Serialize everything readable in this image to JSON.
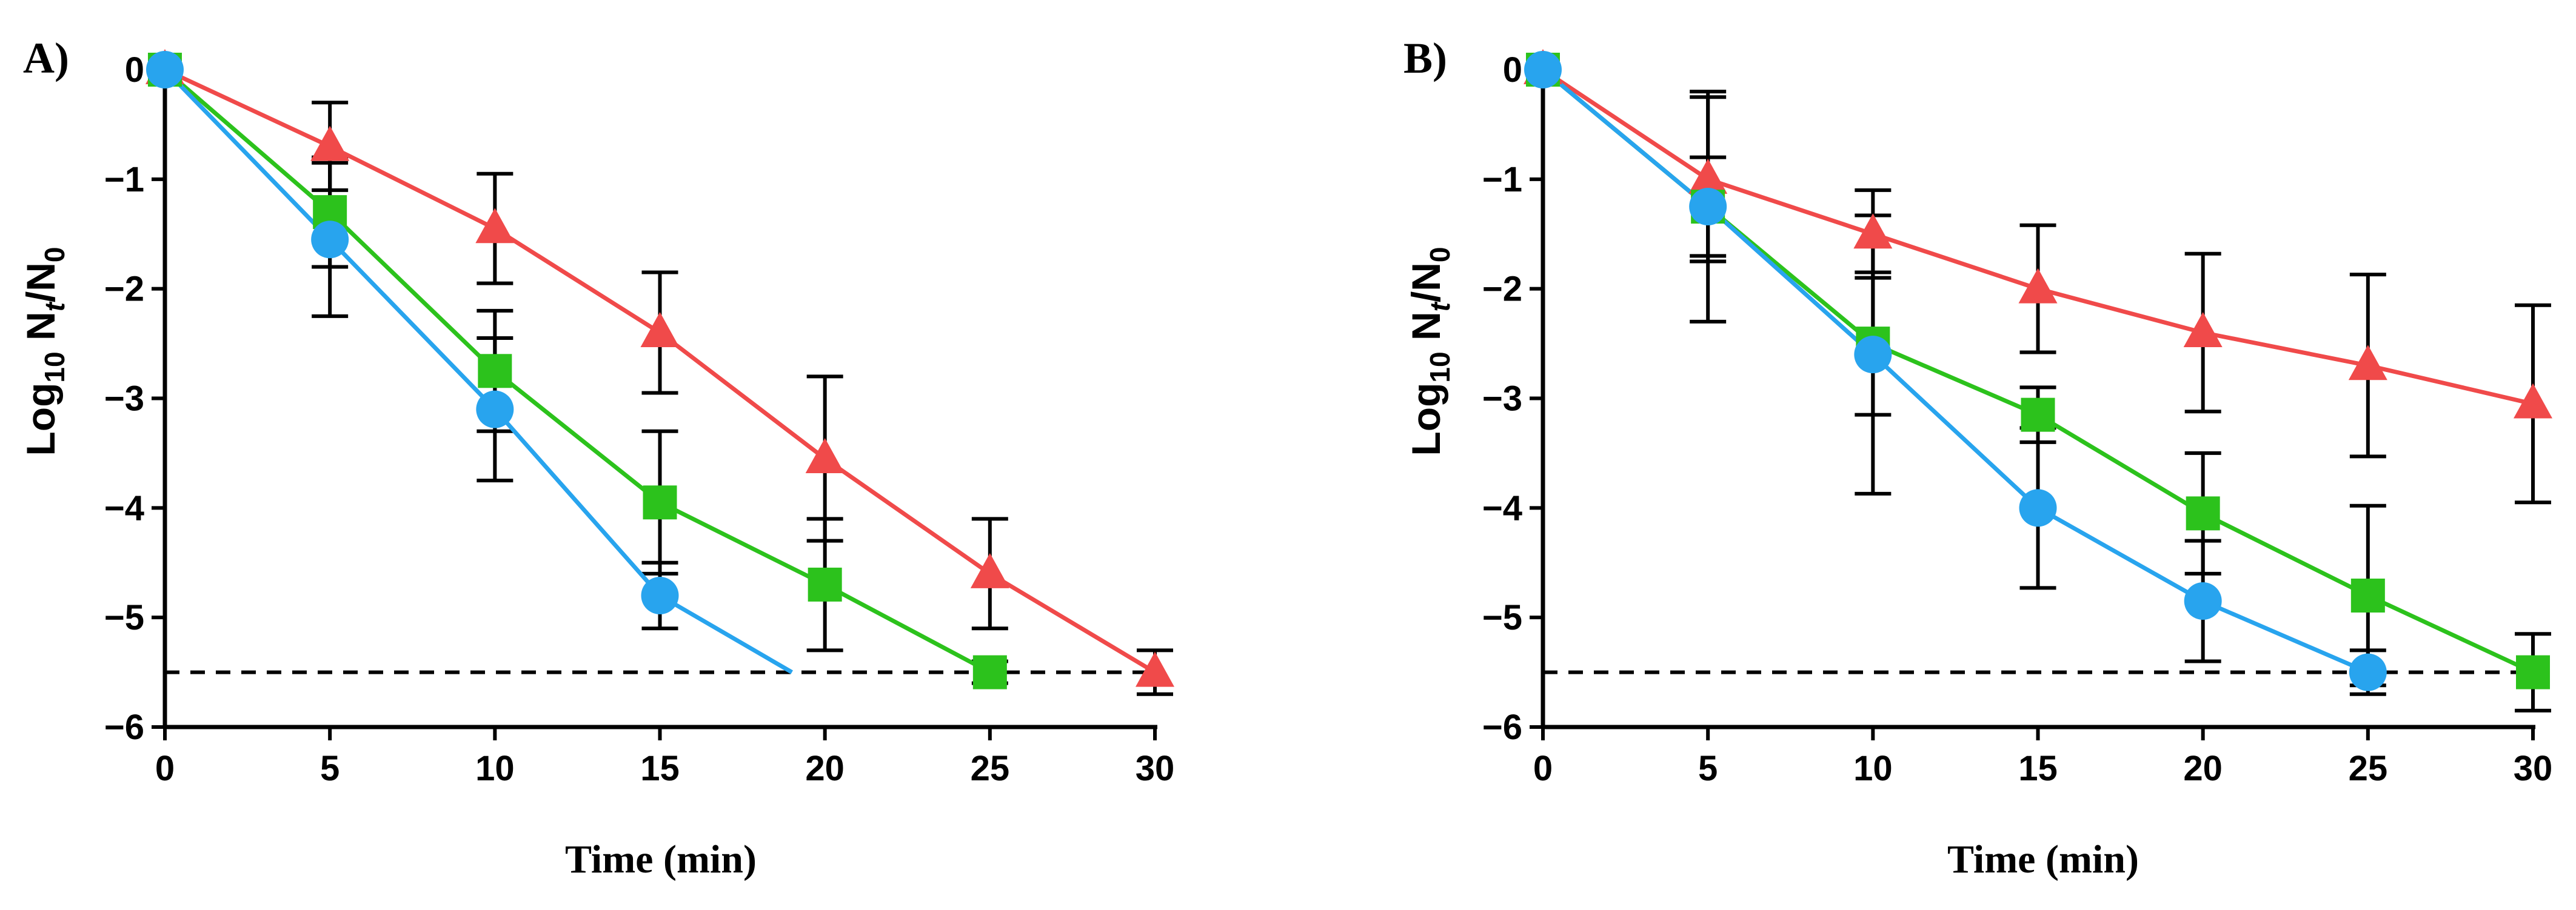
{
  "colors": {
    "red": "#f04a4a",
    "green": "#2cc21c",
    "blue": "#28a4ee",
    "axis": "#000000",
    "errorbar": "#000000"
  },
  "chart_data": [
    {
      "panel": "A)",
      "type": "line",
      "xlabel": "Time (min)",
      "ylabel": "Log10 Nt/N0",
      "ylabel_parts": {
        "main": "Log",
        "sub1": "10",
        "n": " N",
        "sub2": "t",
        "slash": "/N",
        "sub3": "0"
      },
      "xlim": [
        0,
        30
      ],
      "ylim": [
        -6,
        0
      ],
      "xticks": [
        "0",
        "5",
        "10",
        "15",
        "20",
        "25",
        "30"
      ],
      "yticks": [
        "0",
        "−1",
        "−2",
        "−3",
        "−4",
        "−5",
        "−6"
      ],
      "detection_limit": -5.5,
      "series": [
        {
          "name": "triangle",
          "marker": "triangle",
          "color": "red",
          "x": [
            0,
            5,
            10,
            15,
            20,
            25,
            30
          ],
          "y": [
            0,
            -0.7,
            -1.45,
            -2.4,
            -3.55,
            -4.6,
            -5.5
          ],
          "err": [
            0,
            0.4,
            0.5,
            0.55,
            0.75,
            0.5,
            0.2
          ]
        },
        {
          "name": "square",
          "marker": "square",
          "color": "green",
          "x": [
            0,
            5,
            10,
            15,
            20,
            25
          ],
          "y": [
            0,
            -1.3,
            -2.75,
            -3.95,
            -4.7,
            -5.5
          ],
          "err": [
            0,
            0.5,
            0.55,
            0.65,
            0.6,
            0.1
          ]
        },
        {
          "name": "circle",
          "marker": "circle",
          "color": "blue",
          "x": [
            0,
            5,
            10,
            15,
            19
          ],
          "y": [
            0,
            -1.55,
            -3.1,
            -4.8,
            -5.5
          ],
          "err": [
            0,
            0.7,
            0.65,
            0.3,
            0
          ],
          "marker_points": 4
        }
      ]
    },
    {
      "panel": "B)",
      "type": "line",
      "xlabel": "Time (min)",
      "ylabel": "Log10 Nt/N0",
      "ylabel_parts": {
        "main": "Log",
        "sub1": "10",
        "n": " N",
        "sub2": "t",
        "slash": "/N",
        "sub3": "0"
      },
      "xlim": [
        0,
        30
      ],
      "ylim": [
        -6,
        0
      ],
      "xticks": [
        "0",
        "5",
        "10",
        "15",
        "20",
        "25",
        "30"
      ],
      "yticks": [
        "0",
        "−1",
        "−2",
        "−3",
        "−4",
        "−5",
        "−6"
      ],
      "detection_limit": -5.5,
      "series": [
        {
          "name": "triangle",
          "marker": "triangle",
          "color": "red",
          "x": [
            0,
            5,
            10,
            15,
            20,
            25,
            30
          ],
          "y": [
            0,
            -1.0,
            -1.5,
            -2.0,
            -2.4,
            -2.7,
            -3.05
          ],
          "err": [
            0,
            0.75,
            0.4,
            0.58,
            0.72,
            0.83,
            0.9
          ]
        },
        {
          "name": "square",
          "marker": "square",
          "color": "green",
          "x": [
            0,
            5,
            10,
            15,
            20,
            25,
            30
          ],
          "y": [
            0,
            -1.25,
            -2.5,
            -3.15,
            -4.05,
            -4.8,
            -5.5
          ],
          "err": [
            0,
            0.45,
            0.65,
            0.25,
            0.55,
            0.82,
            0.35
          ]
        },
        {
          "name": "circle",
          "marker": "circle",
          "color": "blue",
          "x": [
            0,
            5,
            10,
            15,
            20,
            25
          ],
          "y": [
            0,
            -1.25,
            -2.6,
            -4.0,
            -4.85,
            -5.5
          ],
          "err": [
            0,
            1.05,
            1.27,
            0.73,
            0.55,
            0.2
          ]
        }
      ]
    }
  ]
}
